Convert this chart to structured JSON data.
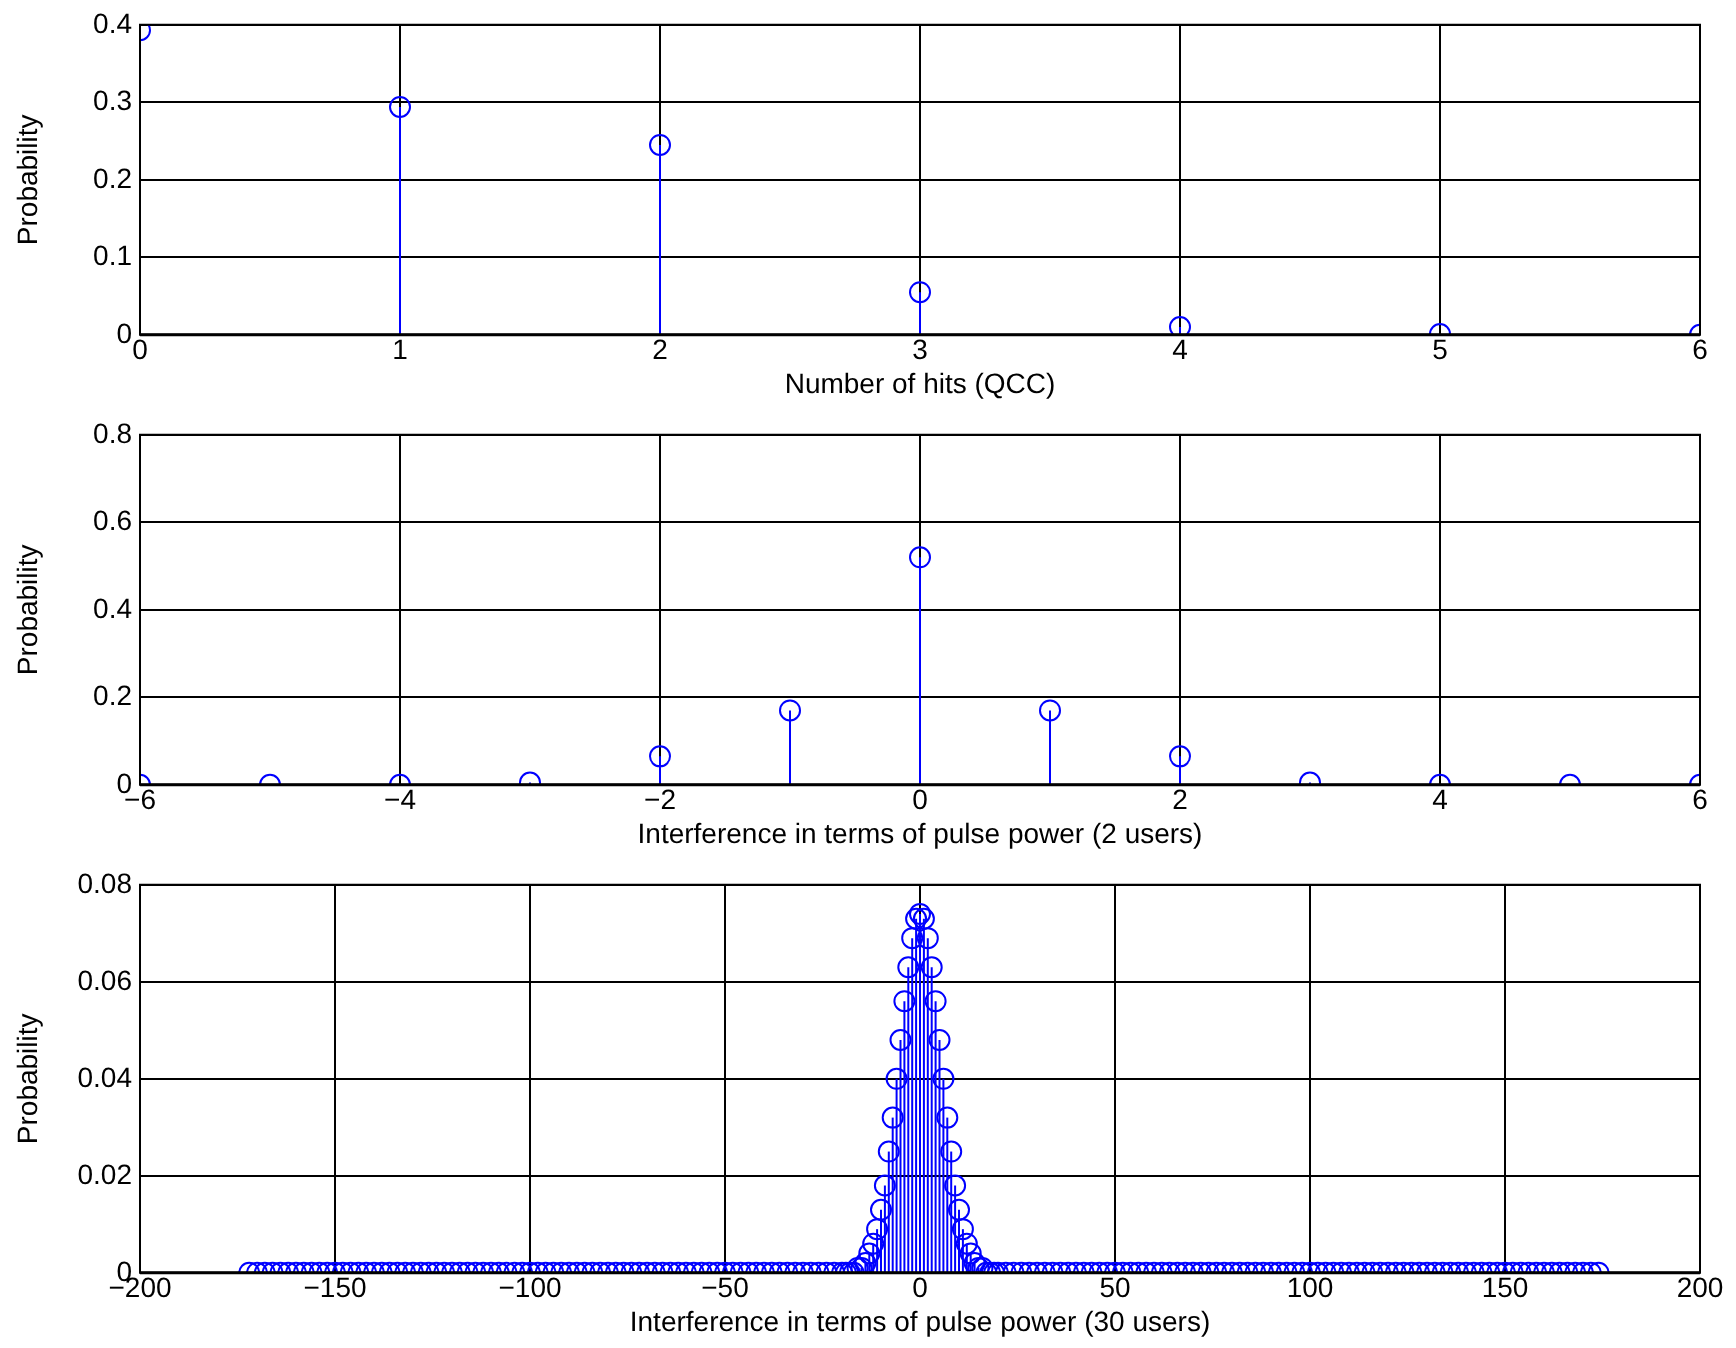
{
  "chart_data": [
    {
      "type": "lollipop",
      "xlabel": "Number of hits (QCC)",
      "ylabel": "Probability",
      "x": [
        0,
        1,
        2,
        3,
        4,
        5,
        6
      ],
      "series": [
        {
          "color": "#0000ff",
          "values": [
            0.393,
            0.294,
            0.245,
            0.055,
            0.01,
            0.001,
            0
          ]
        }
      ],
      "xlim": [
        0,
        6
      ],
      "xticks": [
        0,
        1,
        2,
        3,
        4,
        5,
        6
      ],
      "ylim": [
        0,
        0.4
      ],
      "yticks": [
        0,
        0.1,
        0.2,
        0.3,
        0.4
      ],
      "grid": true,
      "marker": "circle"
    },
    {
      "type": "lollipop",
      "xlabel": "Interference in terms of pulse power (2 users)",
      "ylabel": "Probability",
      "x": [
        -6,
        -5,
        -4,
        -3,
        -2,
        -1,
        0,
        1,
        2,
        3,
        4,
        5,
        6
      ],
      "series": [
        {
          "color": "#0000ff",
          "values": [
            0,
            0,
            0,
            0.005,
            0.065,
            0.17,
            0.52,
            0.17,
            0.065,
            0.005,
            0,
            0,
            0
          ]
        }
      ],
      "xlim": [
        -6,
        6
      ],
      "xticks": [
        -6,
        -4,
        -2,
        0,
        2,
        4,
        6
      ],
      "ylim": [
        0,
        0.8
      ],
      "yticks": [
        0,
        0.2,
        0.4,
        0.6,
        0.8
      ],
      "grid": true,
      "marker": "circle"
    },
    {
      "type": "lollipop",
      "xlabel": "Interference in terms of pulse power (30 users)",
      "ylabel": "Probability",
      "x": [
        -172,
        -170,
        -168,
        -166,
        -164,
        -162,
        -160,
        -158,
        -156,
        -154,
        -152,
        -150,
        -148,
        -146,
        -144,
        -142,
        -140,
        -138,
        -136,
        -134,
        -132,
        -130,
        -128,
        -126,
        -124,
        -122,
        -120,
        -118,
        -116,
        -114,
        -112,
        -110,
        -108,
        -106,
        -104,
        -102,
        -100,
        -98,
        -96,
        -94,
        -92,
        -90,
        -88,
        -86,
        -84,
        -82,
        -80,
        -78,
        -76,
        -74,
        -72,
        -70,
        -68,
        -66,
        -64,
        -62,
        -60,
        -58,
        -56,
        -54,
        -52,
        -50,
        -48,
        -46,
        -44,
        -42,
        -40,
        -38,
        -36,
        -34,
        -32,
        -30,
        -28,
        -26,
        -24,
        -22,
        -20,
        -19,
        -18,
        -17,
        -16,
        -15,
        -14,
        -13,
        -12,
        -11,
        -10,
        -9,
        -8,
        -7,
        -6,
        -5,
        -4,
        -3,
        -2,
        -1,
        0,
        1,
        2,
        3,
        4,
        5,
        6,
        7,
        8,
        9,
        10,
        11,
        12,
        13,
        14,
        15,
        16,
        17,
        18,
        19,
        20,
        22,
        24,
        26,
        28,
        30,
        32,
        34,
        36,
        38,
        40,
        42,
        44,
        46,
        48,
        50,
        52,
        54,
        56,
        58,
        60,
        62,
        64,
        66,
        68,
        70,
        72,
        74,
        76,
        78,
        80,
        82,
        84,
        86,
        88,
        90,
        92,
        94,
        96,
        98,
        100,
        102,
        104,
        106,
        108,
        110,
        112,
        114,
        116,
        118,
        120,
        122,
        124,
        126,
        128,
        130,
        132,
        134,
        136,
        138,
        140,
        142,
        144,
        146,
        148,
        150,
        152,
        154,
        156,
        158,
        160,
        162,
        164,
        166,
        168,
        170,
        172,
        174
      ],
      "series": [
        {
          "color": "#0000ff",
          "values": [
            0,
            0,
            0,
            0,
            0,
            0,
            0,
            0,
            0,
            0,
            0,
            0,
            0,
            0,
            0,
            0,
            0,
            0,
            0,
            0,
            0,
            0,
            0,
            0,
            0,
            0,
            0,
            0,
            0,
            0,
            0,
            0,
            0,
            0,
            0,
            0,
            0,
            0,
            0,
            0,
            0,
            0,
            0,
            0,
            0,
            0,
            0,
            0,
            0,
            0,
            0,
            0,
            0,
            0,
            0,
            0,
            0,
            0,
            0,
            0,
            0,
            0,
            0,
            0,
            0,
            0,
            0,
            0,
            0,
            0,
            0,
            0,
            0,
            0,
            0,
            0,
            0,
            0,
            0,
            0,
            0.001,
            0.001,
            0.002,
            0.004,
            0.006,
            0.009,
            0.013,
            0.018,
            0.025,
            0.032,
            0.04,
            0.048,
            0.056,
            0.063,
            0.069,
            0.073,
            0.074,
            0.073,
            0.069,
            0.063,
            0.056,
            0.048,
            0.04,
            0.032,
            0.025,
            0.018,
            0.013,
            0.009,
            0.006,
            0.004,
            0.002,
            0.001,
            0.001,
            0,
            0,
            0,
            0,
            0,
            0,
            0,
            0,
            0,
            0,
            0,
            0,
            0,
            0,
            0,
            0,
            0,
            0,
            0,
            0,
            0,
            0,
            0,
            0,
            0,
            0,
            0,
            0,
            0,
            0,
            0,
            0,
            0,
            0,
            0,
            0,
            0,
            0,
            0,
            0,
            0,
            0,
            0,
            0,
            0,
            0,
            0,
            0,
            0,
            0,
            0,
            0,
            0,
            0,
            0,
            0,
            0,
            0,
            0,
            0,
            0,
            0,
            0,
            0,
            0,
            0,
            0,
            0,
            0,
            0,
            0,
            0,
            0,
            0,
            0,
            0,
            0,
            0,
            0,
            0,
            0
          ]
        }
      ],
      "xlim": [
        -200,
        200
      ],
      "xticks": [
        -200,
        -150,
        -100,
        -50,
        0,
        50,
        100,
        150,
        200
      ],
      "ylim": [
        0,
        0.08
      ],
      "yticks": [
        0,
        0.02,
        0.04,
        0.06,
        0.08
      ],
      "grid": true,
      "marker": "circle"
    }
  ]
}
